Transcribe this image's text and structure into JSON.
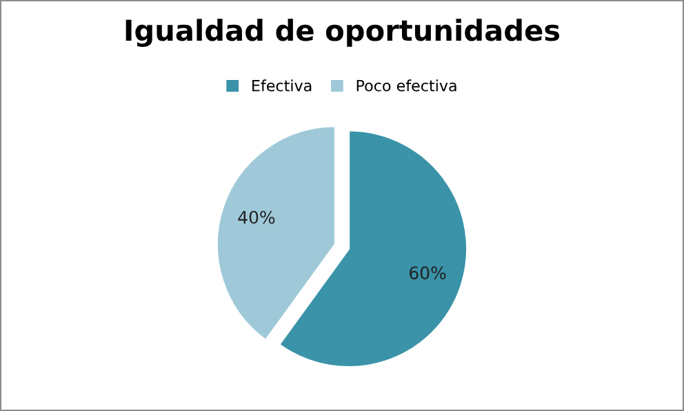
{
  "chart_data": {
    "type": "pie",
    "title": "Igualdad de oportunidades",
    "categories": [
      "Efectiva",
      "Poco efectiva"
    ],
    "values": [
      60,
      40
    ],
    "colors": [
      "#3a93a8",
      "#9fc9d8"
    ],
    "value_labels": [
      "60%",
      "40%"
    ],
    "legend": "top"
  }
}
